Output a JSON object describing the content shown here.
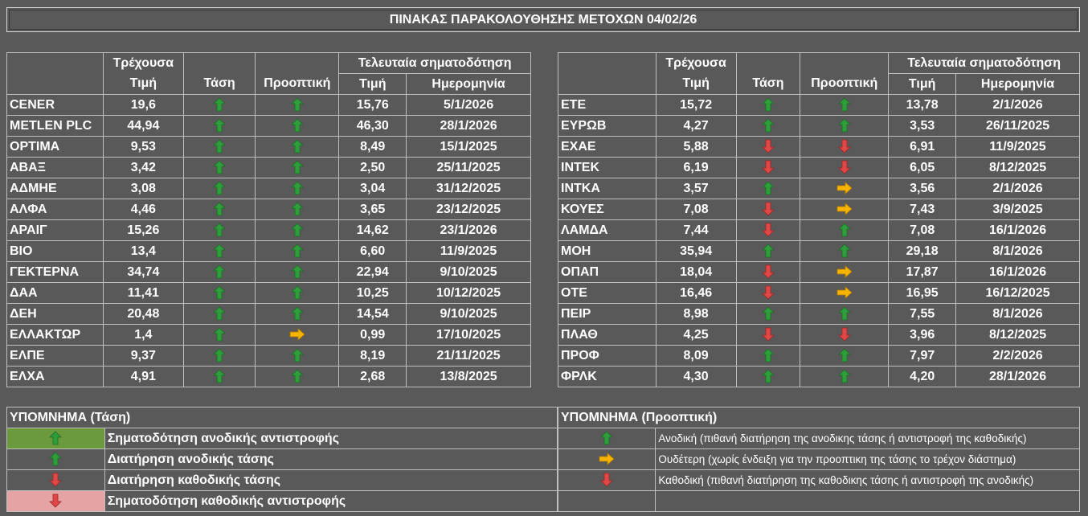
{
  "title": "ΠΙΝΑΚΑΣ ΠΑΡΑΚΟΛΟΥΘΗΣΗΣ ΜΕΤΟΧΩΝ 04/02/26",
  "headers": {
    "price_line1": "Τρέχουσα",
    "price_line2": "Τιμή",
    "trend": "Τάση",
    "outlook": "Προοπτική",
    "last_signal": "Τελευταία σηματοδότηση",
    "signal_price": "Τιμή",
    "signal_date": "Ημερομηνία"
  },
  "left_rows": [
    {
      "name": "CENER",
      "price": "19,6",
      "trend": "up",
      "outlook": "up",
      "sig_price": "15,76",
      "sig_date": "5/1/2026"
    },
    {
      "name": "METLEN PLC",
      "price": "44,94",
      "trend": "up",
      "outlook": "up",
      "sig_price": "46,30",
      "sig_date": "28/1/2026"
    },
    {
      "name": "ΟΡΤΙΜΑ",
      "price": "9,53",
      "trend": "up",
      "outlook": "up",
      "sig_price": "8,49",
      "sig_date": "15/1/2025"
    },
    {
      "name": "ΑΒΑΞ",
      "price": "3,42",
      "trend": "up",
      "outlook": "up",
      "sig_price": "2,50",
      "sig_date": "25/11/2025"
    },
    {
      "name": "ΑΔΜΗΕ",
      "price": "3,08",
      "trend": "up",
      "outlook": "up",
      "sig_price": "3,04",
      "sig_date": "31/12/2025"
    },
    {
      "name": "ΑΛΦΑ",
      "price": "4,46",
      "trend": "up",
      "outlook": "up",
      "sig_price": "3,65",
      "sig_date": "23/12/2025"
    },
    {
      "name": "ΑΡΑΙΓ",
      "price": "15,26",
      "trend": "up",
      "outlook": "up",
      "sig_price": "14,62",
      "sig_date": "23/1/2026"
    },
    {
      "name": "ΒΙΟ",
      "price": "13,4",
      "trend": "up",
      "outlook": "up",
      "sig_price": "6,60",
      "sig_date": "11/9/2025"
    },
    {
      "name": "ΓΕΚΤΕΡΝΑ",
      "price": "34,74",
      "trend": "up",
      "outlook": "up",
      "sig_price": "22,94",
      "sig_date": "9/10/2025"
    },
    {
      "name": "ΔΑΑ",
      "price": "11,41",
      "trend": "up",
      "outlook": "up",
      "sig_price": "10,25",
      "sig_date": "10/12/2025"
    },
    {
      "name": "ΔΕΗ",
      "price": "20,48",
      "trend": "up",
      "outlook": "up",
      "sig_price": "14,54",
      "sig_date": "9/10/2025"
    },
    {
      "name": "ΕΛΛΑΚΤΩΡ",
      "price": "1,4",
      "trend": "up",
      "outlook": "neutral",
      "sig_price": "0,99",
      "sig_date": "17/10/2025"
    },
    {
      "name": "ΕΛΠΕ",
      "price": "9,37",
      "trend": "up",
      "outlook": "up",
      "sig_price": "8,19",
      "sig_date": "21/11/2025"
    },
    {
      "name": "ΕΛΧΑ",
      "price": "4,91",
      "trend": "up",
      "outlook": "up",
      "sig_price": "2,68",
      "sig_date": "13/8/2025"
    }
  ],
  "right_rows": [
    {
      "name": "ΕΤΕ",
      "price": "15,72",
      "trend": "up",
      "outlook": "up",
      "sig_price": "13,78",
      "sig_date": "2/1/2026"
    },
    {
      "name": "ΕΥΡΩΒ",
      "price": "4,27",
      "trend": "up",
      "outlook": "up",
      "sig_price": "3,53",
      "sig_date": "26/11/2025"
    },
    {
      "name": "ΕΧΑΕ",
      "price": "5,88",
      "trend": "down",
      "outlook": "down",
      "sig_price": "6,91",
      "sig_date": "11/9/2025"
    },
    {
      "name": "ΙΝΤΕΚ",
      "price": "6,19",
      "trend": "down",
      "outlook": "down",
      "sig_price": "6,05",
      "sig_date": "8/12/2025"
    },
    {
      "name": "ΙΝΤΚΑ",
      "price": "3,57",
      "trend": "up",
      "outlook": "neutral",
      "sig_price": "3,56",
      "sig_date": "2/1/2026"
    },
    {
      "name": "ΚΟΥΕΣ",
      "price": "7,08",
      "trend": "down",
      "outlook": "neutral",
      "sig_price": "7,43",
      "sig_date": "3/9/2025"
    },
    {
      "name": "ΛΑΜΔΑ",
      "price": "7,44",
      "trend": "down",
      "outlook": "up",
      "sig_price": "7,08",
      "sig_date": "16/1/2026"
    },
    {
      "name": "ΜΟΗ",
      "price": "35,94",
      "trend": "up",
      "outlook": "up",
      "sig_price": "29,18",
      "sig_date": "8/1/2026"
    },
    {
      "name": "ΟΠΑΠ",
      "price": "18,04",
      "trend": "down",
      "outlook": "neutral",
      "sig_price": "17,87",
      "sig_date": "16/1/2026"
    },
    {
      "name": "ΟΤΕ",
      "price": "16,46",
      "trend": "down",
      "outlook": "neutral",
      "sig_price": "16,95",
      "sig_date": "16/12/2025"
    },
    {
      "name": "ΠΕΙΡ",
      "price": "8,98",
      "trend": "up",
      "outlook": "up",
      "sig_price": "7,55",
      "sig_date": "8/1/2026"
    },
    {
      "name": "ΠΛΑΘ",
      "price": "4,25",
      "trend": "down",
      "outlook": "down",
      "sig_price": "3,96",
      "sig_date": "8/12/2025"
    },
    {
      "name": "ΠΡΟΦ",
      "price": "8,09",
      "trend": "up",
      "outlook": "up",
      "sig_price": "7,97",
      "sig_date": "2/2/2026"
    },
    {
      "name": "ΦΡΛΚ",
      "price": "4,30",
      "trend": "up",
      "outlook": "up",
      "sig_price": "4,20",
      "sig_date": "28/1/2026"
    }
  ],
  "legend_trend": {
    "header": "ΥΠΟΜΝΗΜΑ (Τάση)",
    "items": [
      {
        "symbol": "up",
        "bg": "#6b9a3c",
        "label": "Σηματοδότηση ανοδικής αντιστροφής"
      },
      {
        "symbol": "up",
        "bg": "",
        "label": "Διατήρηση ανοδικής τάσης"
      },
      {
        "symbol": "down",
        "bg": "",
        "label": "Διατήρηση καθοδικής τάσης"
      },
      {
        "symbol": "down",
        "bg": "#e6a3a3",
        "label": "Σηματοδότηση καθοδικής αντιστροφής"
      }
    ]
  },
  "legend_outlook": {
    "header": "ΥΠΟΜΝΗΜΑ (Προοπτική)",
    "items": [
      {
        "symbol": "up",
        "label": "Ανοδική (πιθανή διατήρηση της ανοδικης τάσης ή αντιστροφή της καθοδικής)"
      },
      {
        "symbol": "neutral",
        "label": "Ουδέτερη (χωρίς ένδειξη για την προοπτικη της τάσης το τρέχον διάστημα)"
      },
      {
        "symbol": "down",
        "label": "Καθοδική (πιθανή διατήρηση της καθοδικης τάσης ή αντιστροφή της ανοδικής)"
      }
    ]
  },
  "colors": {
    "background": "#595959",
    "up_arrow": "#2e9e3a",
    "down_arrow": "#e04848",
    "neutral_arrow": "#f5b400",
    "grid": "#bfbfbf"
  }
}
